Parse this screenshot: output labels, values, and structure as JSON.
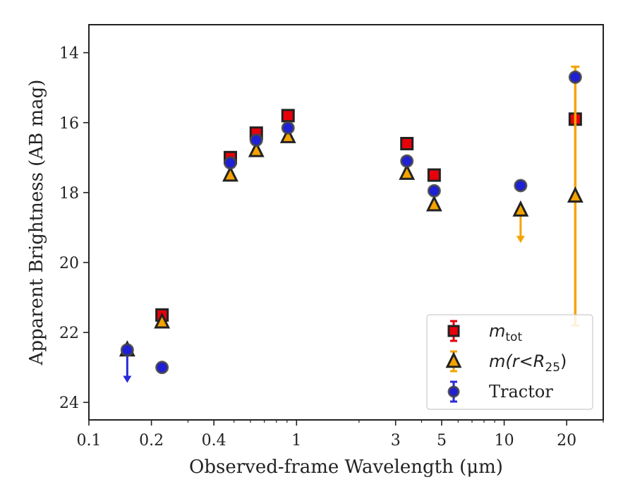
{
  "chart_data": {
    "type": "scatter",
    "xlabel": "Observed-frame Wavelength (μm)",
    "ylabel": "Apparent Brightness (AB mag)",
    "xscale": "log",
    "xlim": [
      0.1,
      30
    ],
    "ylim": [
      24.5,
      13.2
    ],
    "y_inverted": true,
    "xticks": [
      {
        "value": 0.1,
        "label": "0.1"
      },
      {
        "value": 0.2,
        "label": "0.2"
      },
      {
        "value": 0.4,
        "label": "0.4"
      },
      {
        "value": 1,
        "label": "1"
      },
      {
        "value": 3,
        "label": "3"
      },
      {
        "value": 5,
        "label": "5"
      },
      {
        "value": 10,
        "label": "10"
      },
      {
        "value": 20,
        "label": "20"
      }
    ],
    "yticks": [
      {
        "value": 14,
        "label": "14"
      },
      {
        "value": 16,
        "label": "16"
      },
      {
        "value": 18,
        "label": "18"
      },
      {
        "value": 20,
        "label": "20"
      },
      {
        "value": 22,
        "label": "22"
      },
      {
        "value": 24,
        "label": "24"
      }
    ],
    "grid": false,
    "legend_position": "lower-right",
    "series": [
      {
        "name": "m_tot",
        "legend_main": "m",
        "legend_sub": "tot",
        "marker": "square",
        "face_color": "#e8000b",
        "edge_color": "#222222",
        "err_color": "#e8000b",
        "points": [
          {
            "x": 0.225,
            "y": 21.5
          },
          {
            "x": 0.48,
            "y": 17.0
          },
          {
            "x": 0.64,
            "y": 16.3
          },
          {
            "x": 0.91,
            "y": 15.8
          },
          {
            "x": 3.4,
            "y": 16.6
          },
          {
            "x": 4.6,
            "y": 17.5
          },
          {
            "x": 22.0,
            "y": 15.9
          }
        ]
      },
      {
        "name": "m(r<R_25)",
        "legend_main": "m(r<R",
        "legend_sub": "25",
        "legend_tail": ")",
        "marker": "triangle",
        "face_color": "#f5a300",
        "edge_color": "#222222",
        "err_color": "#f5a300",
        "points": [
          {
            "x": 0.153,
            "y": 22.5
          },
          {
            "x": 0.225,
            "y": 21.7
          },
          {
            "x": 0.48,
            "y": 17.5
          },
          {
            "x": 0.64,
            "y": 16.8
          },
          {
            "x": 0.91,
            "y": 16.4
          },
          {
            "x": 3.4,
            "y": 17.45
          },
          {
            "x": 4.6,
            "y": 18.35
          },
          {
            "x": 12.0,
            "y": 18.5,
            "upper_limit_to": 19.4
          },
          {
            "x": 22.0,
            "y": 18.1,
            "err_low": 14.4,
            "err_high": 21.8
          }
        ]
      },
      {
        "name": "Tractor",
        "legend_main": "Tractor",
        "marker": "circle",
        "face_color": "#1f1fd6",
        "edge_color": "#444444",
        "err_color": "#2a2ad6",
        "points": [
          {
            "x": 0.153,
            "y": 22.5,
            "upper_limit_to": 23.4
          },
          {
            "x": 0.225,
            "y": 23.0
          },
          {
            "x": 0.48,
            "y": 17.15
          },
          {
            "x": 0.64,
            "y": 16.5
          },
          {
            "x": 0.91,
            "y": 16.15
          },
          {
            "x": 3.4,
            "y": 17.1
          },
          {
            "x": 4.6,
            "y": 17.95
          },
          {
            "x": 12.0,
            "y": 17.8
          },
          {
            "x": 22.0,
            "y": 14.7
          }
        ]
      }
    ]
  }
}
